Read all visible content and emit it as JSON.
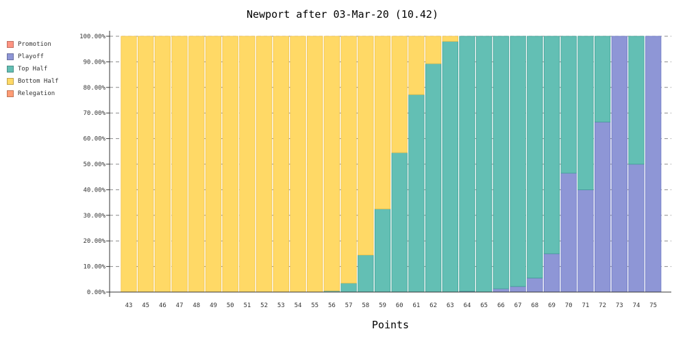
{
  "chart_data": {
    "type": "bar",
    "stacked": true,
    "title": "Newport after 03-Mar-20 (10.42)",
    "xlabel": "Points",
    "ylabel": "",
    "ylim": [
      0,
      1
    ],
    "yticks": [
      "0.00%",
      "10.00%",
      "20.00%",
      "30.00%",
      "40.00%",
      "50.00%",
      "60.00%",
      "70.00%",
      "80.00%",
      "90.00%",
      "100.00%"
    ],
    "grid": true,
    "legend_position": "top-left",
    "categories": [
      "43",
      "45",
      "46",
      "47",
      "48",
      "49",
      "50",
      "51",
      "52",
      "53",
      "54",
      "55",
      "56",
      "57",
      "58",
      "59",
      "60",
      "61",
      "62",
      "63",
      "64",
      "65",
      "66",
      "67",
      "68",
      "69",
      "70",
      "71",
      "72",
      "73",
      "74",
      "75"
    ],
    "series": [
      {
        "name": "Promotion",
        "color": "#FF9482",
        "values": [
          0,
          0,
          0,
          0,
          0,
          0,
          0,
          0,
          0,
          0,
          0,
          0,
          0,
          0,
          0,
          0,
          0,
          0,
          0,
          0,
          0,
          0,
          0,
          0,
          0,
          0,
          0,
          0,
          0,
          0,
          0,
          0
        ]
      },
      {
        "name": "Playoff",
        "color": "#8E96D6",
        "values": [
          0,
          0,
          0,
          0,
          0,
          0,
          0,
          0,
          0,
          0,
          0,
          0,
          0,
          0,
          0,
          0,
          0,
          0,
          0,
          0,
          0.003,
          0,
          0.013,
          0.022,
          0.055,
          0.15,
          0.465,
          0.4,
          0.665,
          1.0,
          0.5,
          1.0
        ]
      },
      {
        "name": "Top Half",
        "color": "#63BFB4",
        "values": [
          0,
          0,
          0,
          0,
          0,
          0,
          0,
          0,
          0,
          0,
          0,
          0,
          0.005,
          0.035,
          0.145,
          0.325,
          0.545,
          0.772,
          0.893,
          0.98,
          0.997,
          1.0,
          0.987,
          0.978,
          0.945,
          0.85,
          0.535,
          0.6,
          0.335,
          0,
          0.5,
          0
        ]
      },
      {
        "name": "Bottom Half",
        "color": "#FFD966",
        "values": [
          1,
          1,
          1,
          1,
          1,
          1,
          1,
          1,
          1,
          1,
          1,
          1,
          0.995,
          0.965,
          0.855,
          0.675,
          0.455,
          0.228,
          0.107,
          0.02,
          0,
          0,
          0,
          0,
          0,
          0,
          0,
          0,
          0,
          0,
          0,
          0
        ]
      },
      {
        "name": "Relegation",
        "color": "#FF9C75",
        "values": [
          0,
          0,
          0,
          0,
          0,
          0,
          0,
          0,
          0,
          0,
          0,
          0,
          0,
          0,
          0,
          0,
          0,
          0,
          0,
          0,
          0,
          0,
          0,
          0,
          0,
          0,
          0,
          0,
          0,
          0,
          0,
          0
        ]
      }
    ]
  }
}
